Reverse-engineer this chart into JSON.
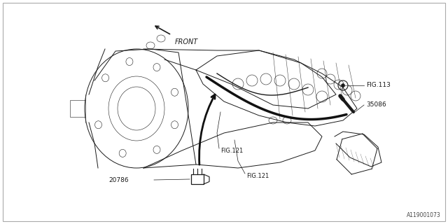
{
  "bg_color": "#ffffff",
  "border_color": "#cccccc",
  "fig_width": 6.4,
  "fig_height": 3.2,
  "dpi": 100,
  "diagram_id": "A119001073",
  "text_color": "#000000",
  "line_color": "#1a1a1a",
  "label_20786": "20786",
  "label_fig121a": "FIG.121",
  "label_fig121b": "FIG.121",
  "label_35086": "35086",
  "label_fig113": "FIG.113",
  "label_front": "FRONT"
}
